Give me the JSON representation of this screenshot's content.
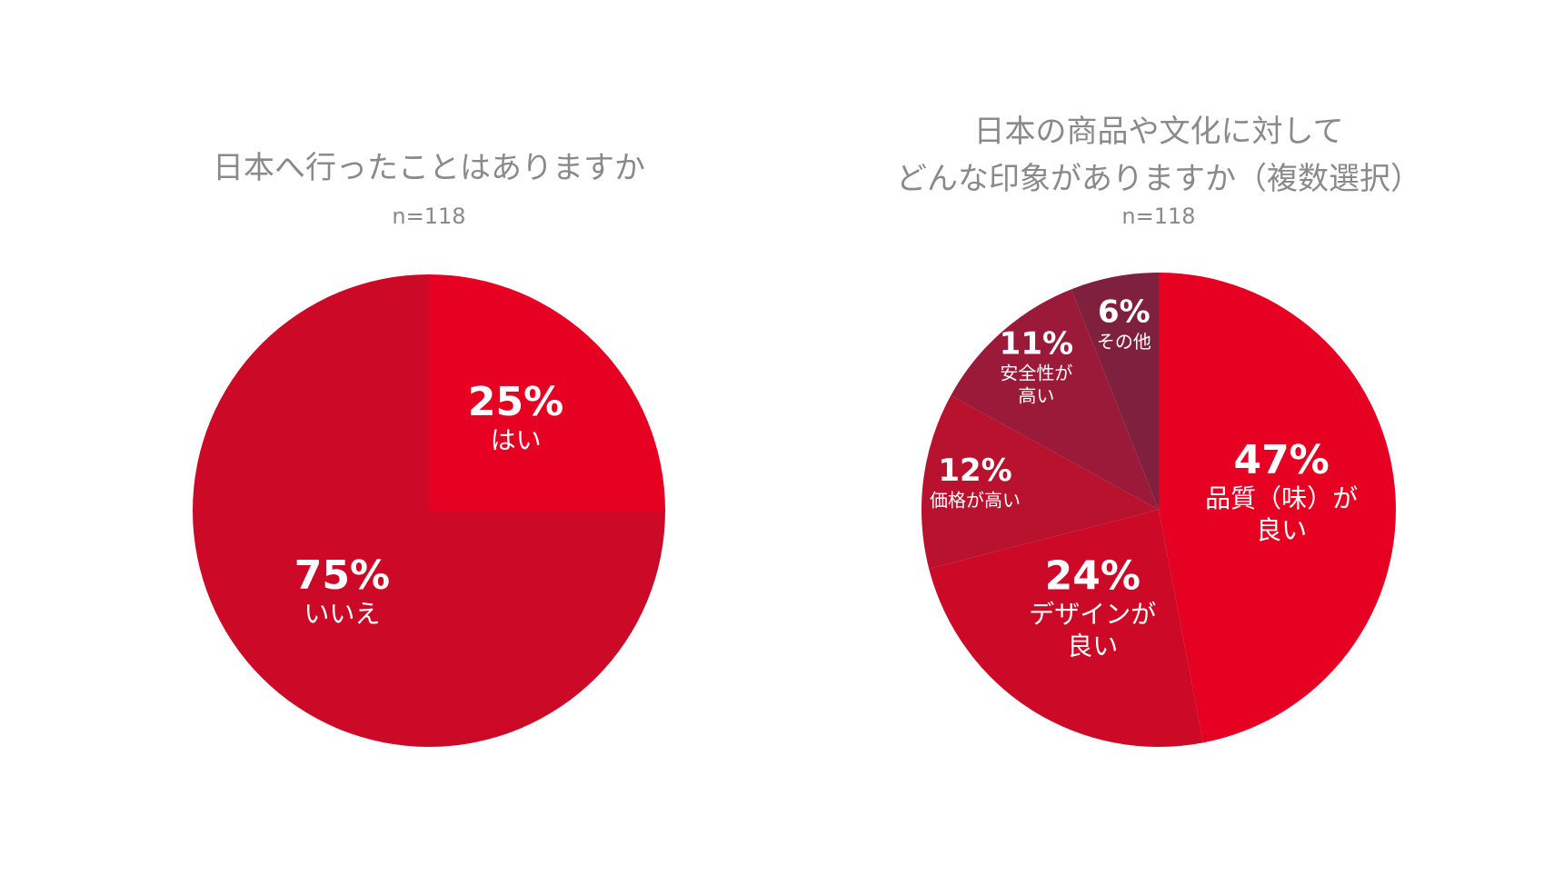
{
  "chart_data": [
    {
      "type": "pie",
      "title": "日本へ行ったことはありますか",
      "subtitle": "n=118",
      "categories": [
        "はい",
        "いいえ"
      ],
      "values": [
        25,
        75
      ],
      "value_labels": [
        "25%",
        "75%"
      ],
      "colors": [
        "#e60022",
        "#cc0a28"
      ]
    },
    {
      "type": "pie",
      "title": "日本の商品や文化に対して\nどんな印象がありますか（複数選択）",
      "subtitle": "n=118",
      "categories": [
        "品質（味）が\n良い",
        "デザインが\n良い",
        "価格が高い",
        "安全性が\n高い",
        "その他"
      ],
      "values": [
        47,
        24,
        12,
        11,
        6
      ],
      "value_labels": [
        "47%",
        "24%",
        "12%",
        "11%",
        "6%"
      ],
      "colors": [
        "#e60022",
        "#cc0a28",
        "#b8122f",
        "#9c1a39",
        "#80203f"
      ]
    }
  ]
}
